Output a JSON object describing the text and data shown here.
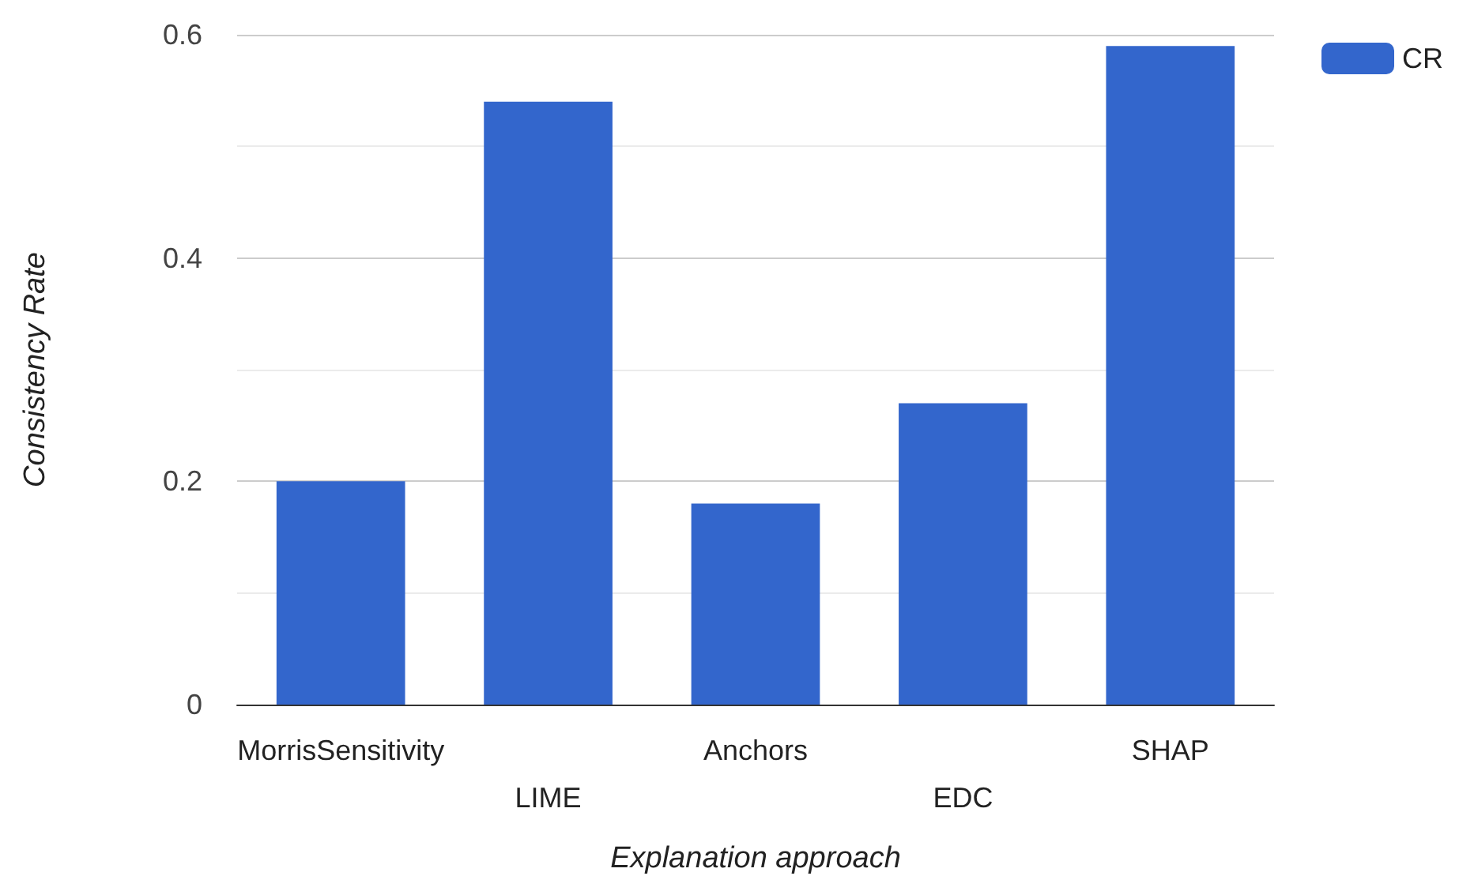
{
  "chart_data": {
    "type": "bar",
    "xlabel": "Explanation approach",
    "ylabel": "Consistency Rate",
    "categories": [
      "MorrisSensitivity",
      "LIME",
      "Anchors",
      "EDC",
      "SHAP"
    ],
    "series": [
      {
        "name": "CR",
        "color": "#3366cc",
        "values": [
          0.2,
          0.54,
          0.18,
          0.27,
          0.59
        ]
      }
    ],
    "ylim": [
      0,
      0.6
    ],
    "yticks": [
      0,
      {
        "value": 0.1,
        "label": null
      },
      0.2,
      {
        "value": 0.3,
        "label": null
      },
      0.4,
      {
        "value": 0.5,
        "label": null
      },
      0.6
    ],
    "grid": "y",
    "legend": "top right"
  }
}
